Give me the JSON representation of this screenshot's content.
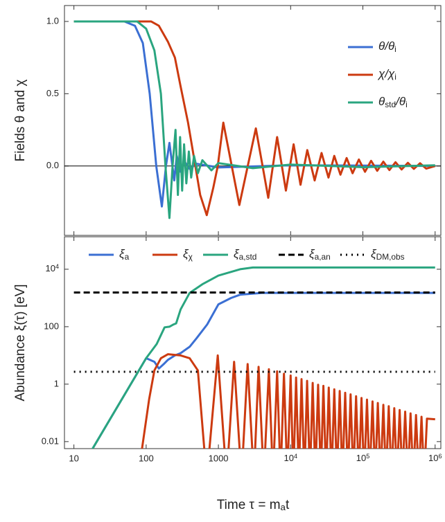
{
  "chart_data": [
    {
      "type": "line",
      "ylabel": "Fields  θ  and  χ",
      "xlim": [
        7.4,
        1200000
      ],
      "xlog": true,
      "ylim": [
        -0.48,
        1.11
      ],
      "yticks": [
        {
          "value": 1,
          "label": "1.0"
        },
        0.5,
        {
          "value": 0,
          "label": "0.0"
        }
      ],
      "legend": "upper right",
      "series": [
        {
          "name": [
            "θ/θ",
            {
              "sub": "i"
            }
          ],
          "color": "#3b6fd3",
          "dash": "solid",
          "x": [
            10,
            50,
            70,
            90,
            112,
            138,
            165,
            188,
            210,
            245,
            265,
            300,
            340,
            400,
            500,
            1000,
            10000,
            1000000
          ],
          "values": [
            1,
            1,
            0.97,
            0.85,
            0.5,
            0,
            -0.28,
            0,
            0.16,
            -0.1,
            0.07,
            -0.04,
            0.03,
            -0.02,
            0.015,
            -0.01,
            0.005,
            0
          ]
        },
        {
          "name": [
            "χ/χ",
            {
              "sub": "i"
            }
          ],
          "color": "#cc3a10",
          "dash": "solid",
          "x": [
            10,
            117,
            150,
            200,
            250,
            300,
            380,
            480,
            560,
            690,
            850,
            980,
            1170,
            1950,
            3300,
            4900,
            6500,
            8600,
            11000,
            13700,
            17000,
            21500,
            26800,
            33400,
            40200,
            48900,
            59600,
            72000,
            88000,
            107000,
            130000,
            158000,
            192000,
            233000,
            283000,
            344000,
            420000,
            508000,
            618000,
            752000,
            1000000
          ],
          "values": [
            1,
            1,
            0.97,
            0.86,
            0.75,
            0.55,
            0.3,
            0,
            -0.2,
            -0.34,
            -0.15,
            0,
            0.3,
            -0.27,
            0.26,
            -0.22,
            0.2,
            -0.17,
            0.15,
            -0.13,
            0.11,
            -0.1,
            0.09,
            -0.08,
            0.07,
            -0.06,
            0.055,
            -0.05,
            0.045,
            -0.04,
            0.036,
            -0.033,
            0.03,
            -0.028,
            0.026,
            -0.024,
            0.022,
            -0.02,
            0.019,
            -0.018,
            0
          ]
        },
        {
          "name": [
            "θ",
            {
              "sub": "std"
            },
            "/θ",
            {
              "sub": "i"
            }
          ],
          "color": "#2aa57f",
          "dash": "solid",
          "x": [
            10,
            75,
            100,
            130,
            160,
            185,
            210,
            232,
            255,
            275,
            295,
            315,
            335,
            360,
            390,
            420,
            460,
            520,
            600,
            800,
            1000,
            3000,
            10000,
            100000,
            1000000
          ],
          "values": [
            1,
            1,
            0.95,
            0.8,
            0.5,
            0,
            -0.36,
            0,
            0.25,
            -0.2,
            0.2,
            -0.17,
            0.15,
            -0.12,
            0.1,
            -0.08,
            0.07,
            -0.05,
            0.04,
            -0.03,
            0.02,
            -0.015,
            0.01,
            -0.008,
            0.005
          ]
        }
      ]
    },
    {
      "type": "line",
      "ylabel": "Abundance ξ(τ) [eV]",
      "xlabel": [
        "Time τ = m",
        {
          "sub": "a"
        },
        "t"
      ],
      "xlim": [
        7.4,
        1200000
      ],
      "xlog": true,
      "xticks": [
        10,
        100,
        1000,
        {
          "value": 10000,
          "label": [
            "10",
            {
              "sup": "4"
            }
          ]
        },
        {
          "value": 100000,
          "label": [
            "10",
            {
              "sup": "5"
            }
          ]
        },
        {
          "value": 1000000,
          "label": [
            "10",
            {
              "sup": "6"
            }
          ]
        }
      ],
      "ylim": [
        0.0057,
        135000
      ],
      "ylog": true,
      "yticks": [
        {
          "value": 10000,
          "label": [
            "10",
            {
              "sup": "4"
            }
          ]
        },
        100,
        1,
        0.01
      ],
      "legend": "upper center",
      "series": [
        {
          "name": [
            "ξ",
            {
              "sub": "a"
            }
          ],
          "color": "#3b6fd3",
          "dash": "solid",
          "x": [
            17.6,
            100,
            130,
            150,
            175,
            200,
            250,
            300,
            400,
            500,
            700,
            1000,
            1500,
            2000,
            4000,
            1000000
          ],
          "values": [
            0.005,
            8,
            6,
            3.5,
            5,
            7,
            10,
            12,
            20,
            40,
            120,
            600,
            1000,
            1300,
            1500,
            1500
          ]
        },
        {
          "name": [
            "ξ",
            {
              "sub": "χ"
            }
          ],
          "color": "#cc3a10",
          "dash": "solid",
          "x": [
            87,
            110,
            130,
            160,
            200,
            300,
            400,
            520,
            690,
            980,
            1300,
            1650,
            2090,
            2540,
            3100,
            3600,
            4250,
            5000,
            5700,
            6500,
            7250,
            8080,
            9000,
            10000,
            10900,
            11900,
            13000,
            14150,
            15500,
            16900,
            18500,
            20200,
            22000,
            24000,
            26200,
            28400,
            31000,
            33700,
            36800,
            40200,
            43800,
            47800,
            52100,
            56900,
            62000,
            67600,
            73800,
            80500,
            87800,
            95700,
            104000,
            114000,
            124000,
            136000,
            148000,
            161000,
            176000,
            192000,
            209000,
            228000,
            249000,
            272000,
            296000,
            323000,
            352000,
            385000,
            420000,
            457000,
            499000,
            544000,
            594000,
            648000,
            706000,
            771000,
            1000000
          ],
          "values": [
            0.005,
            0.3,
            3,
            8,
            11,
            10,
            8,
            3,
            0.0005,
            10,
            0.0005,
            6,
            0.0005,
            5,
            0.0005,
            4,
            0.0005,
            3.3,
            0.0005,
            2.8,
            0.0005,
            2.3,
            0.0005,
            2,
            0.0005,
            1.7,
            0.0005,
            1.5,
            0.0005,
            1.3,
            0.0005,
            1.1,
            0.0005,
            0.95,
            0.0005,
            0.87,
            0.0005,
            0.76,
            0.0005,
            0.66,
            0.0005,
            0.58,
            0.0005,
            0.5,
            0.0005,
            0.44,
            0.0005,
            0.38,
            0.0005,
            0.33,
            0.0005,
            0.29,
            0.0005,
            0.25,
            0.0005,
            0.22,
            0.0005,
            0.19,
            0.0005,
            0.17,
            0.0005,
            0.145,
            0.0005,
            0.126,
            0.0005,
            0.11,
            0.0005,
            0.096,
            0.0005,
            0.084,
            0.0005,
            0.073,
            0.0005,
            0.063,
            0.06
          ]
        },
        {
          "name": [
            "ξ",
            {
              "sub": "a,std"
            }
          ],
          "color": "#2aa57f",
          "dash": "solid",
          "x": [
            17.6,
            100,
            140,
            180,
            210,
            240,
            260,
            300,
            400,
            600,
            1000,
            2000,
            3000,
            1000000
          ],
          "values": [
            0.005,
            8,
            25,
            95,
            100,
            120,
            130,
            400,
            1500,
            3000,
            6000,
            10000,
            11500,
            11500
          ]
        },
        {
          "name": [
            "ξ",
            {
              "sub": "a,an"
            }
          ],
          "color": "#000000",
          "dash": "dashed",
          "x": [
            10,
            1000000
          ],
          "values": [
            1550,
            1550
          ]
        },
        {
          "name": [
            "ξ",
            {
              "sub": "DM,obs"
            }
          ],
          "color": "#000000",
          "dash": "dotted",
          "x": [
            10,
            1000000
          ],
          "values": [
            2.7,
            2.7
          ]
        }
      ]
    }
  ]
}
